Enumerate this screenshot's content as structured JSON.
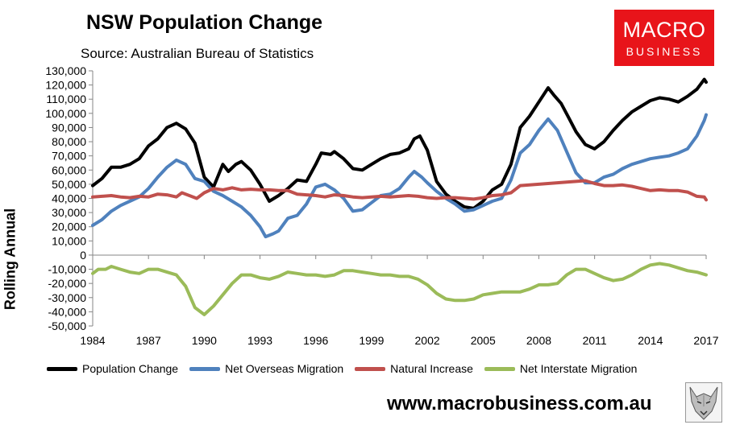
{
  "title": "NSW Population Change",
  "subtitle": "Source: Australian Bureau of Statistics",
  "logo": {
    "line1": "MACRO",
    "line2": "BUSINESS"
  },
  "website": "www.macrobusiness.com.au",
  "chart_data": {
    "type": "line",
    "title": "NSW Population Change",
    "subtitle": "Source: Australian Bureau of Statistics",
    "xlabel": "",
    "ylabel": "Rolling Annual",
    "xlim": [
      1984,
      2017
    ],
    "ylim": [
      -50000,
      130000
    ],
    "x_ticks": [
      1984,
      1987,
      1990,
      1993,
      1996,
      1999,
      2002,
      2005,
      2008,
      2011,
      2014,
      2017
    ],
    "y_ticks": [
      -50000,
      -40000,
      -30000,
      -20000,
      -10000,
      0,
      10000,
      20000,
      30000,
      40000,
      50000,
      60000,
      70000,
      80000,
      90000,
      100000,
      110000,
      120000,
      130000
    ],
    "y_tick_labels": [
      "-50,000",
      "-40,000",
      "-30,000",
      "-20,000",
      "-10,000",
      "0",
      "10,000",
      "20,000",
      "30,000",
      "40,000",
      "50,000",
      "60,000",
      "70,000",
      "80,000",
      "90,000",
      "100,000",
      "110,000",
      "120,000",
      "130,000"
    ],
    "grid": false,
    "legend_position": "bottom",
    "series": [
      {
        "name": "Population Change",
        "color": "#000000",
        "points": [
          [
            1984,
            49000
          ],
          [
            1984.5,
            54000
          ],
          [
            1985,
            62000
          ],
          [
            1985.5,
            62000
          ],
          [
            1986,
            64000
          ],
          [
            1986.5,
            68000
          ],
          [
            1987,
            77000
          ],
          [
            1987.5,
            82000
          ],
          [
            1988,
            90000
          ],
          [
            1988.5,
            93000
          ],
          [
            1989,
            89000
          ],
          [
            1989.5,
            79000
          ],
          [
            1990,
            55000
          ],
          [
            1990.5,
            48000
          ],
          [
            1991,
            64000
          ],
          [
            1991.3,
            59000
          ],
          [
            1991.7,
            64000
          ],
          [
            1992,
            66000
          ],
          [
            1992.5,
            60000
          ],
          [
            1993,
            50000
          ],
          [
            1993.5,
            38000
          ],
          [
            1994,
            42000
          ],
          [
            1994.5,
            47000
          ],
          [
            1995,
            53000
          ],
          [
            1995.5,
            52000
          ],
          [
            1996,
            64000
          ],
          [
            1996.3,
            72000
          ],
          [
            1996.8,
            71000
          ],
          [
            1997,
            73000
          ],
          [
            1997.5,
            68000
          ],
          [
            1998,
            61000
          ],
          [
            1998.5,
            60000
          ],
          [
            1999,
            64000
          ],
          [
            1999.5,
            68000
          ],
          [
            2000,
            71000
          ],
          [
            2000.5,
            72000
          ],
          [
            2001,
            75000
          ],
          [
            2001.3,
            82000
          ],
          [
            2001.6,
            84000
          ],
          [
            2002,
            74000
          ],
          [
            2002.5,
            52000
          ],
          [
            2003,
            43000
          ],
          [
            2003.5,
            38000
          ],
          [
            2004,
            34000
          ],
          [
            2004.5,
            33000
          ],
          [
            2005,
            38000
          ],
          [
            2005.5,
            46000
          ],
          [
            2006,
            50000
          ],
          [
            2006.5,
            64000
          ],
          [
            2007,
            90000
          ],
          [
            2007.5,
            98000
          ],
          [
            2008,
            108000
          ],
          [
            2008.5,
            118000
          ],
          [
            2008.8,
            113000
          ],
          [
            2009.2,
            107000
          ],
          [
            2009.6,
            97000
          ],
          [
            2010,
            87000
          ],
          [
            2010.5,
            78000
          ],
          [
            2011,
            75000
          ],
          [
            2011.5,
            80000
          ],
          [
            2012,
            88000
          ],
          [
            2012.5,
            95000
          ],
          [
            2013,
            101000
          ],
          [
            2013.5,
            105000
          ],
          [
            2014,
            109000
          ],
          [
            2014.5,
            111000
          ],
          [
            2015,
            110000
          ],
          [
            2015.5,
            108000
          ],
          [
            2016,
            112000
          ],
          [
            2016.5,
            117000
          ],
          [
            2016.9,
            124000
          ],
          [
            2017,
            122000
          ]
        ]
      },
      {
        "name": "Net Overseas Migration",
        "color": "#4f81bd",
        "points": [
          [
            1984,
            21000
          ],
          [
            1984.5,
            25000
          ],
          [
            1985,
            31000
          ],
          [
            1985.5,
            35000
          ],
          [
            1986,
            38000
          ],
          [
            1986.5,
            41000
          ],
          [
            1987,
            47000
          ],
          [
            1987.5,
            55000
          ],
          [
            1988,
            62000
          ],
          [
            1988.5,
            67000
          ],
          [
            1989,
            64000
          ],
          [
            1989.5,
            54000
          ],
          [
            1990,
            52000
          ],
          [
            1990.5,
            45000
          ],
          [
            1991,
            42000
          ],
          [
            1991.5,
            38000
          ],
          [
            1992,
            34000
          ],
          [
            1992.5,
            28000
          ],
          [
            1993,
            20000
          ],
          [
            1993.3,
            13000
          ],
          [
            1993.7,
            15000
          ],
          [
            1994,
            17000
          ],
          [
            1994.5,
            26000
          ],
          [
            1995,
            28000
          ],
          [
            1995.5,
            36000
          ],
          [
            1996,
            48000
          ],
          [
            1996.5,
            50000
          ],
          [
            1997,
            46000
          ],
          [
            1997.5,
            40000
          ],
          [
            1998,
            31000
          ],
          [
            1998.5,
            32000
          ],
          [
            1999,
            37000
          ],
          [
            1999.5,
            42000
          ],
          [
            2000,
            43000
          ],
          [
            2000.5,
            47000
          ],
          [
            2001,
            55000
          ],
          [
            2001.3,
            59000
          ],
          [
            2001.7,
            55000
          ],
          [
            2002,
            51000
          ],
          [
            2002.5,
            45000
          ],
          [
            2003,
            40000
          ],
          [
            2003.5,
            36000
          ],
          [
            2004,
            31000
          ],
          [
            2004.5,
            32000
          ],
          [
            2005,
            35000
          ],
          [
            2005.5,
            38000
          ],
          [
            2006,
            40000
          ],
          [
            2006.5,
            53000
          ],
          [
            2007,
            72000
          ],
          [
            2007.5,
            78000
          ],
          [
            2008,
            88000
          ],
          [
            2008.5,
            96000
          ],
          [
            2009,
            88000
          ],
          [
            2009.5,
            73000
          ],
          [
            2010,
            58000
          ],
          [
            2010.5,
            51000
          ],
          [
            2011,
            51000
          ],
          [
            2011.5,
            55000
          ],
          [
            2012,
            57000
          ],
          [
            2012.5,
            61000
          ],
          [
            2013,
            64000
          ],
          [
            2013.5,
            66000
          ],
          [
            2014,
            68000
          ],
          [
            2014.5,
            69000
          ],
          [
            2015,
            70000
          ],
          [
            2015.5,
            72000
          ],
          [
            2016,
            75000
          ],
          [
            2016.5,
            84000
          ],
          [
            2016.9,
            95000
          ],
          [
            2017,
            99000
          ]
        ]
      },
      {
        "name": "Natural Increase",
        "color": "#c0504d",
        "points": [
          [
            1984,
            41000
          ],
          [
            1984.5,
            41500
          ],
          [
            1985,
            42000
          ],
          [
            1985.5,
            41000
          ],
          [
            1986,
            40500
          ],
          [
            1986.5,
            41500
          ],
          [
            1987,
            41000
          ],
          [
            1987.5,
            43000
          ],
          [
            1988,
            42500
          ],
          [
            1988.5,
            41000
          ],
          [
            1988.8,
            44000
          ],
          [
            1989.2,
            42000
          ],
          [
            1989.6,
            40000
          ],
          [
            1990,
            44000
          ],
          [
            1990.5,
            47000
          ],
          [
            1991,
            46000
          ],
          [
            1991.5,
            47500
          ],
          [
            1992,
            46000
          ],
          [
            1992.5,
            46500
          ],
          [
            1993,
            46000
          ],
          [
            1993.5,
            46000
          ],
          [
            1994,
            45500
          ],
          [
            1994.5,
            45500
          ],
          [
            1995,
            43000
          ],
          [
            1995.5,
            42500
          ],
          [
            1996,
            42000
          ],
          [
            1996.5,
            41000
          ],
          [
            1997,
            42500
          ],
          [
            1997.5,
            42000
          ],
          [
            1998,
            41000
          ],
          [
            1998.5,
            40500
          ],
          [
            1999,
            41000
          ],
          [
            1999.5,
            41500
          ],
          [
            2000,
            41000
          ],
          [
            2000.5,
            41500
          ],
          [
            2001,
            42000
          ],
          [
            2001.5,
            41500
          ],
          [
            2002,
            40500
          ],
          [
            2002.5,
            40000
          ],
          [
            2003,
            40500
          ],
          [
            2003.5,
            40500
          ],
          [
            2004,
            40000
          ],
          [
            2004.5,
            39500
          ],
          [
            2005,
            40500
          ],
          [
            2005.5,
            42000
          ],
          [
            2006,
            42500
          ],
          [
            2006.5,
            44000
          ],
          [
            2007,
            49000
          ],
          [
            2007.5,
            49500
          ],
          [
            2008,
            50000
          ],
          [
            2008.5,
            50500
          ],
          [
            2009,
            51000
          ],
          [
            2009.5,
            51500
          ],
          [
            2010,
            52000
          ],
          [
            2010.5,
            52500
          ],
          [
            2011,
            50500
          ],
          [
            2011.5,
            49000
          ],
          [
            2012,
            49000
          ],
          [
            2012.5,
            49500
          ],
          [
            2013,
            48500
          ],
          [
            2013.5,
            47000
          ],
          [
            2014,
            45500
          ],
          [
            2014.5,
            46000
          ],
          [
            2015,
            45500
          ],
          [
            2015.5,
            45500
          ],
          [
            2016,
            44500
          ],
          [
            2016.5,
            41500
          ],
          [
            2016.9,
            41000
          ],
          [
            2017,
            39000
          ]
        ]
      },
      {
        "name": "Net Interstate Migration",
        "color": "#9bbb59",
        "points": [
          [
            1984,
            -13000
          ],
          [
            1984.3,
            -10000
          ],
          [
            1984.7,
            -10000
          ],
          [
            1985,
            -8000
          ],
          [
            1985.5,
            -10000
          ],
          [
            1986,
            -12000
          ],
          [
            1986.5,
            -13000
          ],
          [
            1987,
            -10000
          ],
          [
            1987.5,
            -10000
          ],
          [
            1988,
            -12000
          ],
          [
            1988.5,
            -14000
          ],
          [
            1989,
            -22000
          ],
          [
            1989.5,
            -37000
          ],
          [
            1990,
            -42000
          ],
          [
            1990.5,
            -36000
          ],
          [
            1991,
            -28000
          ],
          [
            1991.5,
            -20000
          ],
          [
            1992,
            -14000
          ],
          [
            1992.5,
            -14000
          ],
          [
            1993,
            -16000
          ],
          [
            1993.5,
            -17000
          ],
          [
            1994,
            -15000
          ],
          [
            1994.5,
            -12000
          ],
          [
            1995,
            -13000
          ],
          [
            1995.5,
            -14000
          ],
          [
            1996,
            -14000
          ],
          [
            1996.5,
            -15000
          ],
          [
            1997,
            -14000
          ],
          [
            1997.5,
            -11000
          ],
          [
            1998,
            -11000
          ],
          [
            1998.5,
            -12000
          ],
          [
            1999,
            -13000
          ],
          [
            1999.5,
            -14000
          ],
          [
            2000,
            -14000
          ],
          [
            2000.5,
            -15000
          ],
          [
            2001,
            -15000
          ],
          [
            2001.5,
            -17000
          ],
          [
            2002,
            -21000
          ],
          [
            2002.5,
            -27000
          ],
          [
            2003,
            -31000
          ],
          [
            2003.5,
            -32000
          ],
          [
            2004,
            -32000
          ],
          [
            2004.5,
            -31000
          ],
          [
            2005,
            -28000
          ],
          [
            2005.5,
            -27000
          ],
          [
            2006,
            -26000
          ],
          [
            2006.5,
            -26000
          ],
          [
            2007,
            -26000
          ],
          [
            2007.5,
            -24000
          ],
          [
            2008,
            -21000
          ],
          [
            2008.5,
            -21000
          ],
          [
            2009,
            -20000
          ],
          [
            2009.5,
            -14000
          ],
          [
            2010,
            -10000
          ],
          [
            2010.5,
            -10000
          ],
          [
            2011,
            -13000
          ],
          [
            2011.5,
            -16000
          ],
          [
            2012,
            -18000
          ],
          [
            2012.5,
            -17000
          ],
          [
            2013,
            -14000
          ],
          [
            2013.5,
            -10000
          ],
          [
            2014,
            -7000
          ],
          [
            2014.5,
            -6000
          ],
          [
            2015,
            -7000
          ],
          [
            2015.5,
            -9000
          ],
          [
            2016,
            -11000
          ],
          [
            2016.5,
            -12000
          ],
          [
            2017,
            -14000
          ]
        ]
      }
    ]
  }
}
